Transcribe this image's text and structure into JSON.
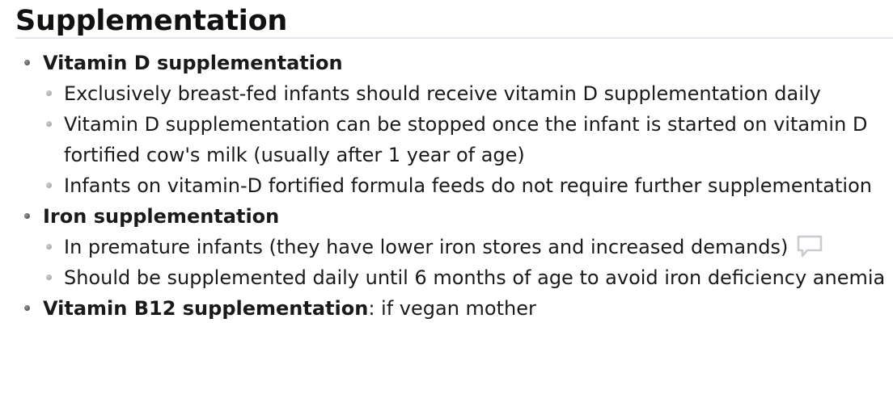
{
  "section": {
    "title": "Supplementation"
  },
  "items": [
    {
      "label": "Vitamin D supplementation",
      "suffix": "",
      "subitems": [
        "Exclusively breast-fed infants should receive vitamin D supplementation daily",
        "Vitamin D supplementation can be stopped once the infant is started on vitamin D fortified cow's milk (usually after 1 year of age)",
        "Infants on vitamin-D fortified formula feeds do not require further supplementation"
      ]
    },
    {
      "label": "Iron supplementation",
      "suffix": "",
      "subitems": [
        "In premature infants (they have lower iron stores and increased demands)",
        "Should be supplemented daily until 6 months of age to avoid iron deficiency anemia"
      ]
    },
    {
      "label": "Vitamin B12 supplementation",
      "suffix": ": if vegan mother",
      "subitems": []
    }
  ],
  "icons": {
    "comment": "comment-icon"
  },
  "colors": {
    "text": "#1a1a1a",
    "rule": "#e4e7ec",
    "bullet_primary": "#555555",
    "bullet_secondary": "#a8a8a8",
    "icon": "#c8ccd1"
  }
}
